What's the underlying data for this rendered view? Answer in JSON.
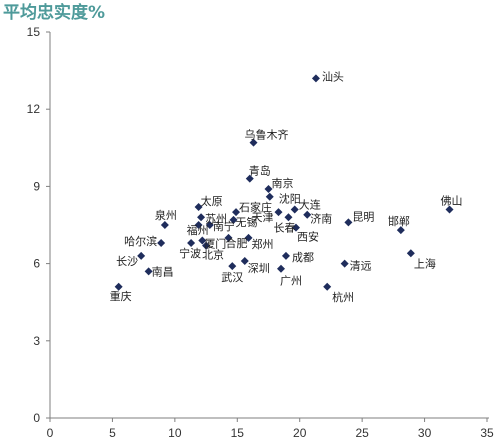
{
  "chart_data": {
    "type": "scatter",
    "ylabel": "平均忠实度%",
    "xlim": [
      0,
      35
    ],
    "ylim": [
      0,
      15
    ],
    "xticks": [
      0,
      5,
      10,
      15,
      20,
      25,
      30,
      35
    ],
    "yticks": [
      0,
      3,
      6,
      9,
      12,
      15
    ],
    "grid": false,
    "legend": "none",
    "marker": "diamond",
    "colors": {
      "title": "#4e9a9a",
      "marker": "#1f2d5c",
      "axis": "#7f7f7f",
      "label": "#222222"
    },
    "points": [
      {
        "label": "汕头",
        "x": 21.3,
        "y": 13.2
      },
      {
        "label": "乌鲁木齐",
        "x": 16.3,
        "y": 10.7
      },
      {
        "label": "青岛",
        "x": 16.0,
        "y": 9.3
      },
      {
        "label": "南京",
        "x": 17.5,
        "y": 8.9
      },
      {
        "label": "沈阳",
        "x": 17.6,
        "y": 8.6
      },
      {
        "label": "大连",
        "x": 19.6,
        "y": 8.1
      },
      {
        "label": "石家庄",
        "x": 14.9,
        "y": 8.0
      },
      {
        "label": "太原",
        "x": 11.9,
        "y": 8.2
      },
      {
        "label": "苏州",
        "x": 12.1,
        "y": 7.8
      },
      {
        "label": "泉州",
        "x": 9.2,
        "y": 7.5
      },
      {
        "label": "福州",
        "x": 11.9,
        "y": 7.5
      },
      {
        "label": "南宁",
        "x": 12.8,
        "y": 7.5
      },
      {
        "label": "无锡",
        "x": 14.7,
        "y": 7.7
      },
      {
        "label": "天津",
        "x": 18.3,
        "y": 8.0
      },
      {
        "label": "长春",
        "x": 19.1,
        "y": 7.8
      },
      {
        "label": "济南",
        "x": 20.6,
        "y": 7.9
      },
      {
        "label": "昆明",
        "x": 23.9,
        "y": 7.6
      },
      {
        "label": "西安",
        "x": 19.7,
        "y": 7.4
      },
      {
        "label": "哈尔滨",
        "x": 8.9,
        "y": 6.8
      },
      {
        "label": "宁波",
        "x": 11.3,
        "y": 6.8
      },
      {
        "label": "厦门",
        "x": 12.2,
        "y": 6.9
      },
      {
        "label": "合肥",
        "x": 14.3,
        "y": 7.0
      },
      {
        "label": "郑州",
        "x": 15.9,
        "y": 7.0
      },
      {
        "label": "北京",
        "x": 12.5,
        "y": 6.7
      },
      {
        "label": "长沙",
        "x": 7.3,
        "y": 6.3
      },
      {
        "label": "南昌",
        "x": 7.9,
        "y": 5.7
      },
      {
        "label": "深圳",
        "x": 15.6,
        "y": 6.1
      },
      {
        "label": "武汉",
        "x": 14.6,
        "y": 5.9
      },
      {
        "label": "成都",
        "x": 18.9,
        "y": 6.3
      },
      {
        "label": "广州",
        "x": 18.5,
        "y": 5.8
      },
      {
        "label": "清远",
        "x": 23.6,
        "y": 6.0
      },
      {
        "label": "杭州",
        "x": 22.2,
        "y": 5.1
      },
      {
        "label": "重庆",
        "x": 5.5,
        "y": 5.1
      },
      {
        "label": "邯郸",
        "x": 28.1,
        "y": 7.3
      },
      {
        "label": "上海",
        "x": 28.9,
        "y": 6.4
      },
      {
        "label": "佛山",
        "x": 32.0,
        "y": 8.1
      }
    ]
  }
}
